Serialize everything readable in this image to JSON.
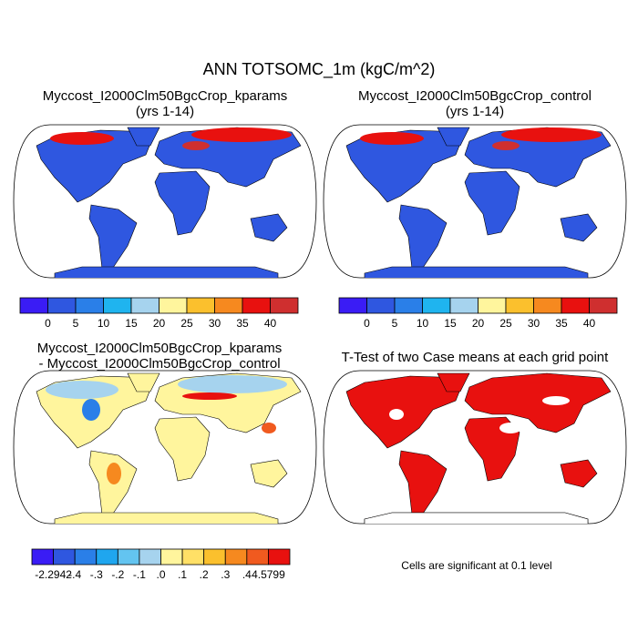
{
  "title": "ANN TOTSOMC_1m (kgC/m^2)",
  "panels": [
    {
      "title": "Myccost_I2000Clm50BgcCrop_kparams",
      "subtitle": "(yrs 1-14)"
    },
    {
      "title": "Myccost_I2000Clm50BgcCrop_control",
      "subtitle": "(yrs 1-14)"
    },
    {
      "title": "Myccost_I2000Clm50BgcCrop_kparams",
      "subtitle": "- Myccost_I2000Clm50BgcCrop_control"
    },
    {
      "title": "T-Test of two Case means at each grid point",
      "note": "Cells are significant at 0.1 level"
    }
  ],
  "colorbars": [
    {
      "colors": [
        "#3a1cf5",
        "#2f57e0",
        "#2a7fe8",
        "#1fb4ef",
        "#a6d3ee",
        "#fff59d",
        "#fbc02d",
        "#f6891f",
        "#e8110f",
        "#cf2f2f"
      ],
      "labels": [
        "0",
        "5",
        "10",
        "15",
        "20",
        "25",
        "30",
        "35",
        "40"
      ]
    },
    {
      "colors": [
        "#3a1cf5",
        "#2f57e0",
        "#2a7fe8",
        "#1fb4ef",
        "#a6d3ee",
        "#fff59d",
        "#fbc02d",
        "#f6891f",
        "#e8110f",
        "#cf2f2f"
      ],
      "labels": [
        "0",
        "5",
        "10",
        "15",
        "20",
        "25",
        "30",
        "35",
        "40"
      ]
    },
    {
      "colors": [
        "#3a1cf5",
        "#2f57e0",
        "#2a7fe8",
        "#1fa6ef",
        "#63c4f0",
        "#a6d3ee",
        "#fff59d",
        "#ffe066",
        "#fbc02d",
        "#f6891f",
        "#f05a1f",
        "#e8110f"
      ],
      "labels": [
        "-2.2942",
        "-.4",
        "-.3",
        "-.2",
        "-.1",
        ".0",
        ".1",
        ".2",
        ".3",
        ".4",
        "4.5799"
      ]
    }
  ]
}
